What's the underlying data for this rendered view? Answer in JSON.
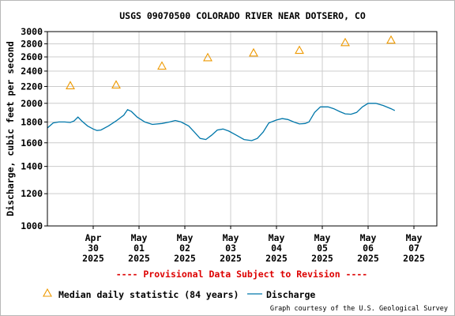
{
  "chart_data": {
    "type": "line",
    "title": "USGS 09070500 COLORADO RIVER NEAR DOTSERO, CO",
    "ylabel": "Discharge, cubic feet per second",
    "xlabel": "",
    "y_scale": "log",
    "ylim": [
      1000,
      3000
    ],
    "y_ticks": [
      1000,
      1200,
      1400,
      1600,
      1800,
      2000,
      2200,
      2400,
      2600,
      2800,
      3000
    ],
    "x_range": [
      "2025-04-29T00:00",
      "2025-05-07T12:00"
    ],
    "x_ticks": [
      {
        "t": "2025-04-30T00:00",
        "line1": "Apr",
        "line2": "30",
        "line3": "2025"
      },
      {
        "t": "2025-05-01T00:00",
        "line1": "May",
        "line2": "01",
        "line3": "2025"
      },
      {
        "t": "2025-05-02T00:00",
        "line1": "May",
        "line2": "02",
        "line3": "2025"
      },
      {
        "t": "2025-05-03T00:00",
        "line1": "May",
        "line2": "03",
        "line3": "2025"
      },
      {
        "t": "2025-05-04T00:00",
        "line1": "May",
        "line2": "04",
        "line3": "2025"
      },
      {
        "t": "2025-05-05T00:00",
        "line1": "May",
        "line2": "05",
        "line3": "2025"
      },
      {
        "t": "2025-05-06T00:00",
        "line1": "May",
        "line2": "06",
        "line3": "2025"
      },
      {
        "t": "2025-05-07T00:00",
        "line1": "May",
        "line2": "07",
        "line3": "2025"
      }
    ],
    "grid": true,
    "series": [
      {
        "name": "Discharge",
        "kind": "line",
        "color": "#0077aa",
        "points": [
          [
            "2025-04-29T00:00",
            1740
          ],
          [
            "2025-04-29T03:00",
            1790
          ],
          [
            "2025-04-29T06:00",
            1800
          ],
          [
            "2025-04-29T09:00",
            1800
          ],
          [
            "2025-04-29T12:00",
            1795
          ],
          [
            "2025-04-29T14:00",
            1810
          ],
          [
            "2025-04-29T16:00",
            1850
          ],
          [
            "2025-04-29T18:00",
            1810
          ],
          [
            "2025-04-29T21:00",
            1760
          ],
          [
            "2025-04-30T00:00",
            1730
          ],
          [
            "2025-04-30T02:00",
            1715
          ],
          [
            "2025-04-30T04:00",
            1720
          ],
          [
            "2025-04-30T08:00",
            1760
          ],
          [
            "2025-04-30T12:00",
            1810
          ],
          [
            "2025-04-30T16:00",
            1870
          ],
          [
            "2025-04-30T18:00",
            1930
          ],
          [
            "2025-04-30T20:00",
            1910
          ],
          [
            "2025-04-30T23:00",
            1850
          ],
          [
            "2025-05-01T03:00",
            1800
          ],
          [
            "2025-05-01T07:00",
            1775
          ],
          [
            "2025-05-01T12:00",
            1785
          ],
          [
            "2025-05-01T16:00",
            1800
          ],
          [
            "2025-05-01T19:00",
            1815
          ],
          [
            "2025-05-01T22:00",
            1800
          ],
          [
            "2025-05-02T02:00",
            1760
          ],
          [
            "2025-05-02T05:00",
            1700
          ],
          [
            "2025-05-02T08:00",
            1640
          ],
          [
            "2025-05-02T11:00",
            1630
          ],
          [
            "2025-05-02T14:00",
            1670
          ],
          [
            "2025-05-02T17:00",
            1720
          ],
          [
            "2025-05-02T20:00",
            1730
          ],
          [
            "2025-05-02T23:00",
            1710
          ],
          [
            "2025-05-03T03:00",
            1670
          ],
          [
            "2025-05-03T07:00",
            1630
          ],
          [
            "2025-05-03T11:00",
            1620
          ],
          [
            "2025-05-03T14:00",
            1640
          ],
          [
            "2025-05-03T17:00",
            1700
          ],
          [
            "2025-05-03T20:00",
            1790
          ],
          [
            "2025-05-04T00:00",
            1820
          ],
          [
            "2025-05-04T03:00",
            1835
          ],
          [
            "2025-05-04T06:00",
            1825
          ],
          [
            "2025-05-04T09:00",
            1800
          ],
          [
            "2025-05-04T12:00",
            1780
          ],
          [
            "2025-05-04T15:00",
            1785
          ],
          [
            "2025-05-04T17:00",
            1800
          ],
          [
            "2025-05-04T20:00",
            1900
          ],
          [
            "2025-05-04T23:00",
            1960
          ],
          [
            "2025-05-05T03:00",
            1960
          ],
          [
            "2025-05-05T06:00",
            1940
          ],
          [
            "2025-05-05T09:00",
            1910
          ],
          [
            "2025-05-05T12:00",
            1885
          ],
          [
            "2025-05-05T15:00",
            1880
          ],
          [
            "2025-05-05T18:00",
            1900
          ],
          [
            "2025-05-05T21:00",
            1960
          ],
          [
            "2025-05-06T00:00",
            2000
          ],
          [
            "2025-05-06T04:00",
            2000
          ],
          [
            "2025-05-06T08:00",
            1975
          ],
          [
            "2025-05-06T12:00",
            1940
          ],
          [
            "2025-05-06T14:00",
            1920
          ]
        ]
      },
      {
        "name": "Median daily statistic (84 years)",
        "kind": "markers",
        "marker": "triangle",
        "color": "#ee9900",
        "points": [
          [
            "2025-04-29T12:00",
            2210
          ],
          [
            "2025-04-30T12:00",
            2220
          ],
          [
            "2025-05-01T12:00",
            2470
          ],
          [
            "2025-05-02T12:00",
            2590
          ],
          [
            "2025-05-03T12:00",
            2660
          ],
          [
            "2025-05-04T12:00",
            2700
          ],
          [
            "2025-05-05T12:00",
            2820
          ],
          [
            "2025-05-06T12:00",
            2860
          ]
        ]
      }
    ]
  },
  "footer": {
    "provisional_note": "---- Provisional Data Subject to Revision ----",
    "legend_median": "Median daily statistic (84 years)",
    "legend_discharge": "Discharge",
    "credit": "Graph courtesy of the U.S. Geological Survey"
  },
  "colors": {
    "grid": "#cccccc",
    "axis": "#000000",
    "provisional": "#dd0000",
    "credit": "#000000"
  }
}
